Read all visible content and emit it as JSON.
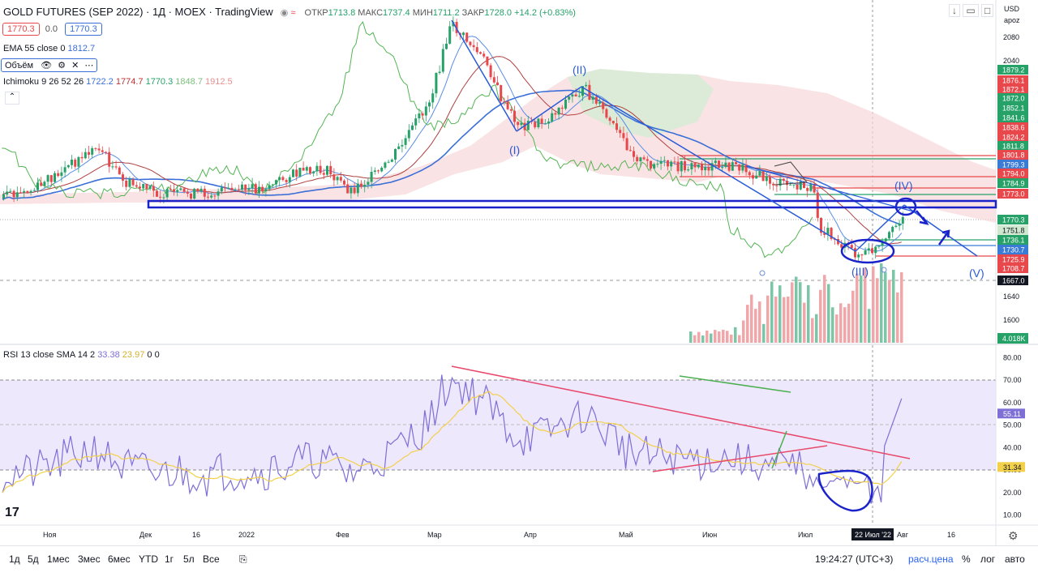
{
  "header": {
    "title": "GOLD FUTURES (SEP 2022) · 1Д · MOEX · TradingView",
    "ohlc_o_label": "ОТКР",
    "ohlc_o": "1713.8",
    "ohlc_h_label": "МАКС",
    "ohlc_h": "1737.4",
    "ohlc_l_label": "МИН",
    "ohlc_l": "1711.2",
    "ohlc_c_label": "ЗАКР",
    "ohlc_c": "1728.0",
    "change": "+14.2 (+0.83%)",
    "bid": "1770.3",
    "spread": "0.0",
    "ask": "1770.3",
    "currency": "USD",
    "account": "apoz"
  },
  "indicators": {
    "ema": {
      "label": "EMA 55 close 0",
      "value": "1812.7"
    },
    "volume": {
      "label": "Объём"
    },
    "ichimoku": {
      "label": "Ichimoku 9 26 52 26",
      "v1": "1722.2",
      "v2": "1774.7",
      "v3": "1770.3",
      "v4": "1848.7",
      "v5": "1912.5"
    },
    "rsi": {
      "label": "RSI 13 close SMA 14 2",
      "v1": "33.38",
      "v2": "23.97",
      "v3": "0",
      "v4": "0"
    }
  },
  "chart_data": [
    {
      "type": "candlestick",
      "title": "GOLD FUTURES (SEP 2022)",
      "y_ticks": [
        2080,
        2040,
        1640,
        1600
      ],
      "x_ticks": [
        "Ноя",
        "Дек",
        "16",
        "2022",
        "Фев",
        "Мар",
        "Апр",
        "Май",
        "Июн",
        "Июл",
        "22 Июл '22",
        "Авг",
        "16"
      ],
      "price_labels": [
        {
          "value": "1879.2",
          "color": "#26a269"
        },
        {
          "value": "1876.1",
          "color": "#e8484b"
        },
        {
          "value": "1872.1",
          "color": "#e8484b"
        },
        {
          "value": "1872.0",
          "color": "#26a269"
        },
        {
          "value": "1852.1",
          "color": "#26a269"
        },
        {
          "value": "1841.6",
          "color": "#26a269"
        },
        {
          "value": "1838.6",
          "color": "#e8484b"
        },
        {
          "value": "1824.2",
          "color": "#e8484b"
        },
        {
          "value": "1811.8",
          "color": "#26a269"
        },
        {
          "value": "1801.8",
          "color": "#e8484b"
        },
        {
          "value": "1799.3",
          "color": "#3a7bd5"
        },
        {
          "value": "1794.0",
          "color": "#e8484b"
        },
        {
          "value": "1784.9",
          "color": "#26a269"
        },
        {
          "value": "1773.0",
          "color": "#e8484b"
        },
        {
          "value": "1770.3",
          "color": "#26a269"
        },
        {
          "value": "1751.8",
          "color": "#cfe8d0"
        },
        {
          "value": "1736.1",
          "color": "#26a269"
        },
        {
          "value": "1730.7",
          "color": "#3a7bd5"
        },
        {
          "value": "1725.9",
          "color": "#e8484b"
        },
        {
          "value": "1708.7",
          "color": "#e8484b"
        },
        {
          "value": "1667.0",
          "color": "#131722"
        }
      ],
      "annotations": [
        "(I)",
        "(II)",
        "(III)",
        "(IV)",
        "(V)"
      ],
      "volume_label": "4.018K"
    },
    {
      "type": "line",
      "title": "RSI 13 close SMA 14 2",
      "y_ticks": [
        80.0,
        70.0,
        60.0,
        50.0,
        40.0,
        30.0,
        20.0,
        10.0
      ],
      "ylim": [
        5,
        85
      ],
      "current_rsi": "55.11",
      "current_sma": "31.34"
    }
  ],
  "bottombar": {
    "timeframes": [
      "1д",
      "5д",
      "1мес",
      "3мес",
      "6мес",
      "YTD",
      "1г",
      "5л",
      "Все"
    ],
    "time": "19:24:27 (UTC+3)",
    "calc": "расч.цена",
    "pct": "%",
    "log": "лог",
    "auto": "авто"
  },
  "colors": {
    "up": "#26a269",
    "down": "#e8484b",
    "ema": "#3a6fd8",
    "rsi": "#7e6fd6",
    "rsi_sma": "#f3d04a",
    "drawing": "#1a23c9"
  }
}
